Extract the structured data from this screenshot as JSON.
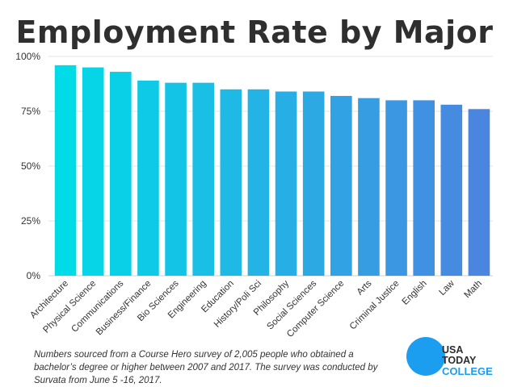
{
  "chart_data": {
    "type": "bar",
    "title": "Employment Rate by Major",
    "categories": [
      "Architecture",
      "Physical Science",
      "Communications",
      "Business/Finance",
      "Bio Sciences",
      "Engineering",
      "Education",
      "History/Poli Sci",
      "Philosophy",
      "Social Sciences",
      "Computer Science",
      "Arts",
      "Criminal Justice",
      "English",
      "Law",
      "Math"
    ],
    "values": [
      96,
      95,
      93,
      89,
      88,
      88,
      85,
      85,
      84,
      84,
      82,
      81,
      80,
      80,
      78,
      76
    ],
    "ylim": [
      0,
      100
    ],
    "y_ticks": [
      0,
      25,
      50,
      75,
      100
    ],
    "y_tick_labels": [
      "0%",
      "25%",
      "50%",
      "75%",
      "100%"
    ],
    "xlabel": "",
    "ylabel": "",
    "grid": true,
    "bar_color_start": "#00dbe8",
    "bar_color_end": "#4a86e0"
  },
  "footnote": "Numbers sourced from a Course Hero survey of 2,005 people who obtained a bachelor’s degree or higher between 2007 and 2017. The survey was conducted by Survata from June 5 -16, 2017.",
  "logo": {
    "line1": "USA",
    "line2": "TODAY",
    "line3": "COLLEGE",
    "color": "#1b9df0"
  }
}
